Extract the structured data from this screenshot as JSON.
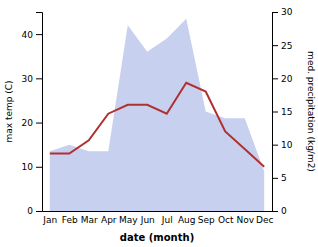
{
  "chart_data": {
    "type": "line",
    "categories": [
      "Jan",
      "Feb",
      "Mar",
      "Apr",
      "May",
      "Jun",
      "Jul",
      "Aug",
      "Sep",
      "Oct",
      "Nov",
      "Dec"
    ],
    "series": [
      {
        "type": "area",
        "axis": "y2",
        "color": "#c8d0f0",
        "values": [
          9,
          10,
          9,
          9,
          28,
          24,
          26,
          29,
          15,
          14,
          14,
          6
        ]
      },
      {
        "type": "line",
        "color": "#b03030",
        "values": [
          13,
          13,
          16,
          22,
          24,
          24,
          22,
          29,
          27,
          18,
          14,
          10
        ]
      }
    ],
    "xlabel": "date (month)",
    "ylabel": "max temp (C)",
    "y2label": "med. precipitation (kg/m2)",
    "ylim": [
      0,
      45
    ],
    "yticks": [
      0,
      10,
      20,
      30,
      40
    ],
    "y2lim": [
      0,
      30
    ],
    "y2ticks": [
      0,
      5,
      10,
      15,
      20,
      25,
      30
    ],
    "grid": false
  }
}
